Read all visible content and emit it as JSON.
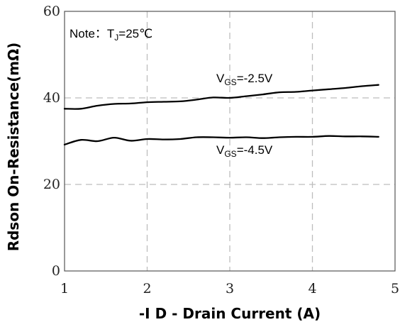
{
  "chart_data": {
    "type": "line",
    "title": "",
    "xlabel": "-I D - Drain Current (A)",
    "ylabel": "Rdson On-Resistance(mΩ)",
    "xlim": [
      1,
      5
    ],
    "ylim": [
      0,
      60
    ],
    "x_ticks": [
      1,
      2,
      3,
      4,
      5
    ],
    "y_ticks": [
      0,
      20,
      40,
      60
    ],
    "grid": true,
    "note": {
      "prefix": "Note：T",
      "sub": "J",
      "suffix": "=25℃"
    },
    "series": [
      {
        "name": "VGS=-2.5V",
        "label": {
          "base": "V",
          "sub": "GS",
          "rest": "=-2.5V"
        },
        "x": [
          1.0,
          1.2,
          1.4,
          1.6,
          1.8,
          2.0,
          2.2,
          2.4,
          2.6,
          2.8,
          3.0,
          3.2,
          3.4,
          3.6,
          3.8,
          4.0,
          4.2,
          4.4,
          4.6,
          4.8
        ],
        "y": [
          37.5,
          37.5,
          38.2,
          38.6,
          38.7,
          39.0,
          39.1,
          39.2,
          39.6,
          40.1,
          40.0,
          40.4,
          40.8,
          41.3,
          41.4,
          41.7,
          42.0,
          42.3,
          42.7,
          43.0
        ]
      },
      {
        "name": "VGS=-4.5V",
        "label": {
          "base": "V",
          "sub": "GS",
          "rest": "=-4.5V"
        },
        "x": [
          1.0,
          1.2,
          1.4,
          1.6,
          1.8,
          2.0,
          2.2,
          2.4,
          2.6,
          2.8,
          3.0,
          3.2,
          3.4,
          3.6,
          3.8,
          4.0,
          4.2,
          4.4,
          4.6,
          4.8
        ],
        "y": [
          29.2,
          30.3,
          30.0,
          30.8,
          30.1,
          30.5,
          30.4,
          30.5,
          30.9,
          30.9,
          30.8,
          30.9,
          30.7,
          30.9,
          31.0,
          31.0,
          31.2,
          31.1,
          31.1,
          31.0
        ]
      }
    ]
  }
}
